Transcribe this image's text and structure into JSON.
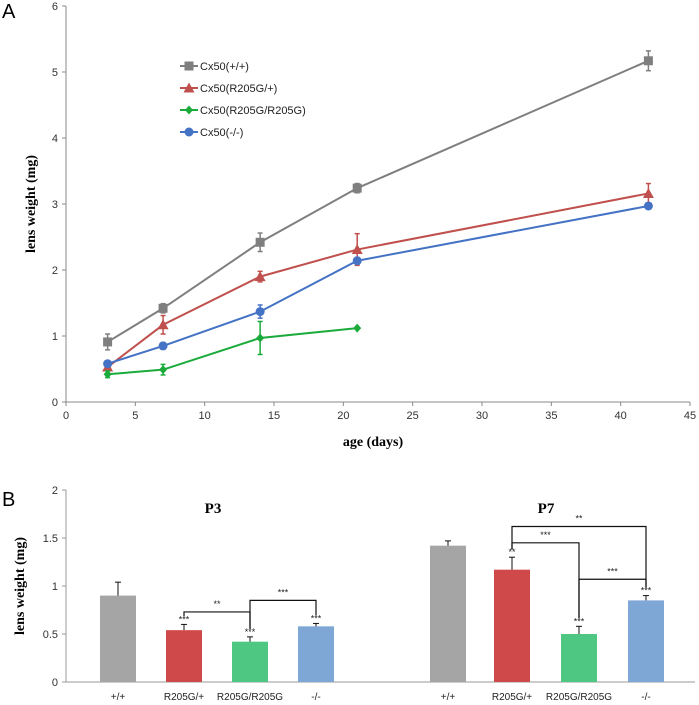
{
  "chart_data": [
    {
      "type": "line",
      "panel": "A",
      "xlabel": "age (days)",
      "ylabel": "lens weight (mg)",
      "xlim": [
        0,
        45
      ],
      "ylim": [
        0,
        6
      ],
      "xticks": [
        "0",
        "5",
        "10",
        "15",
        "20",
        "25",
        "30",
        "35",
        "40",
        "45"
      ],
      "yticks": [
        "0",
        "1",
        "2",
        "3",
        "4",
        "5",
        "6"
      ],
      "legend_position": "top-left",
      "series": [
        {
          "name": "Cx50(+/+)",
          "color": "#7f7f7f",
          "marker": "square",
          "x": [
            3,
            7,
            14,
            21,
            42
          ],
          "y": [
            0.91,
            1.42,
            2.42,
            3.24,
            5.17
          ],
          "err": [
            0.12,
            0.07,
            0.14,
            0.07,
            0.15
          ]
        },
        {
          "name": "Cx50(R205G/+)",
          "color": "#c0504d",
          "marker": "triangle",
          "x": [
            3,
            7,
            14,
            21,
            42
          ],
          "y": [
            0.53,
            1.17,
            1.9,
            2.31,
            3.16
          ],
          "err": [
            0.05,
            0.14,
            0.08,
            0.24,
            0.15
          ]
        },
        {
          "name": "Cx50(R205G/R205G)",
          "color": "#1aab3b",
          "marker": "diamond",
          "x": [
            3,
            7,
            14,
            21
          ],
          "y": [
            0.42,
            0.49,
            0.97,
            1.12
          ],
          "err": [
            0.05,
            0.08,
            0.25,
            0
          ]
        },
        {
          "name": "Cx50(-/-)",
          "color": "#4472c4",
          "marker": "circle",
          "x": [
            3,
            7,
            14,
            21,
            42
          ],
          "y": [
            0.58,
            0.85,
            1.37,
            2.14,
            2.97
          ],
          "err": [
            0.03,
            0.05,
            0.1,
            0.05,
            0.04
          ]
        }
      ]
    },
    {
      "type": "bar",
      "panel": "B",
      "ylabel": "lens weight (mg)",
      "ylim": [
        0,
        2
      ],
      "yticks": [
        "0",
        "0.5",
        "1",
        "1.5",
        "2"
      ],
      "groups": [
        {
          "title": "P3",
          "bars": [
            {
              "label": "+/+",
              "value": 0.9,
              "err": 0.14,
              "color": "#a5a5a5",
              "sig": ""
            },
            {
              "label": "R205G/+",
              "value": 0.54,
              "err": 0.06,
              "color": "#d0494a",
              "sig": "***"
            },
            {
              "label": "R205G/R205G",
              "value": 0.42,
              "err": 0.05,
              "color": "#4ec782",
              "sig": "***"
            },
            {
              "label": "-/-",
              "value": 0.58,
              "err": 0.03,
              "color": "#7fa7d6",
              "sig": "***"
            }
          ],
          "brackets": [
            {
              "from": 1,
              "to": 2,
              "y": 0.73,
              "label": "**"
            },
            {
              "from": 2,
              "to": 3,
              "y": 0.85,
              "label": "***"
            }
          ]
        },
        {
          "title": "P7",
          "bars": [
            {
              "label": "+/+",
              "value": 1.42,
              "err": 0.05,
              "color": "#a5a5a5",
              "sig": ""
            },
            {
              "label": "R205G/+",
              "value": 1.17,
              "err": 0.13,
              "color": "#d0494a",
              "sig": "**"
            },
            {
              "label": "R205G/R205G",
              "value": 0.5,
              "err": 0.08,
              "color": "#4ec782",
              "sig": "***"
            },
            {
              "label": "-/-",
              "value": 0.85,
              "err": 0.05,
              "color": "#7fa7d6",
              "sig": "***"
            }
          ],
          "brackets": [
            {
              "from": 1,
              "to": 3,
              "y": 1.62,
              "label": "**"
            },
            {
              "from": 1,
              "to": 2,
              "y": 1.45,
              "label": "***"
            },
            {
              "from": 2,
              "to": 3,
              "y": 1.07,
              "label": "***"
            }
          ]
        }
      ]
    }
  ]
}
